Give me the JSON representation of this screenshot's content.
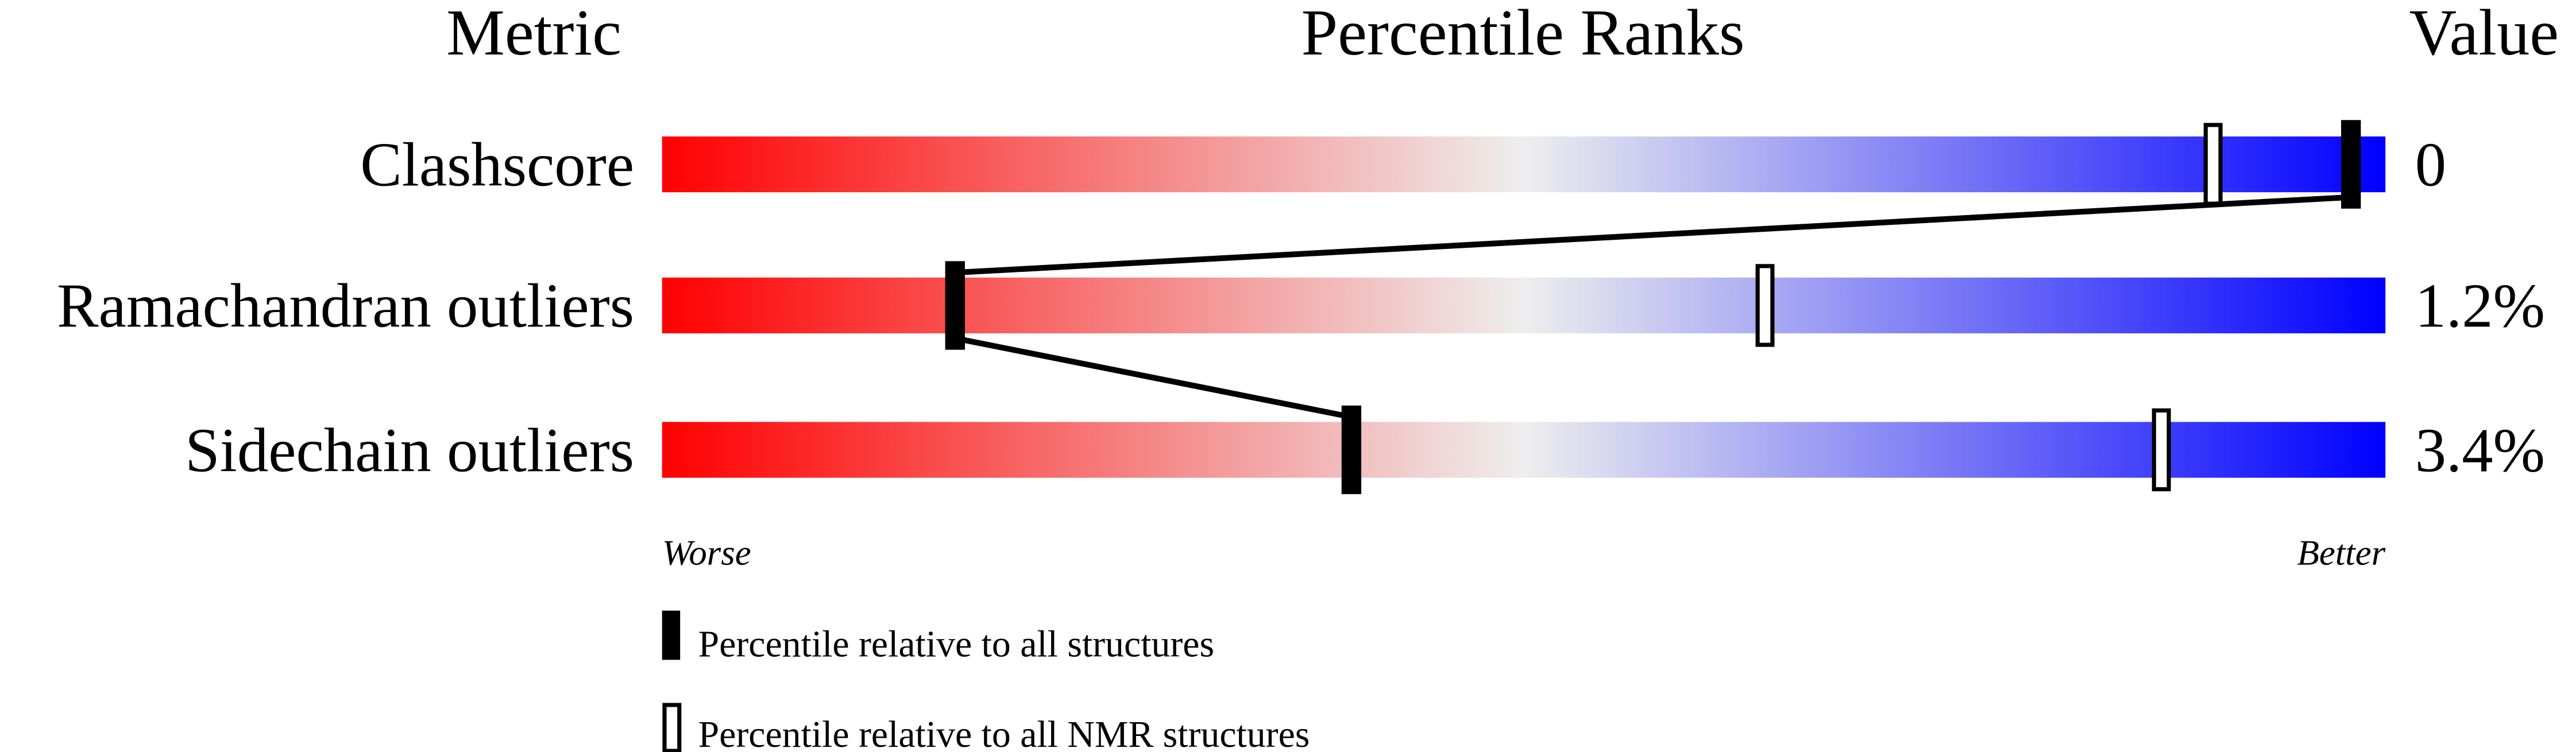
{
  "chart_data": {
    "type": "percentile-slider",
    "headers": {
      "metric": "Metric",
      "ranks": "Percentile Ranks",
      "value": "Value"
    },
    "xlim": [
      0,
      100
    ],
    "axis_labels": {
      "left": "Worse",
      "right": "Better"
    },
    "colors": {
      "worse": "#ff0000",
      "middle": "#eeeeee",
      "better": "#0000ff",
      "marker": "#000000"
    },
    "metrics": [
      {
        "name": "Clashscore",
        "value": "0",
        "percentile_all": 98,
        "percentile_nmr": 90
      },
      {
        "name": "Ramachandran outliers",
        "value": "1.2%",
        "percentile_all": 17,
        "percentile_nmr": 64
      },
      {
        "name": "Sidechain outliers",
        "value": "3.4%",
        "percentile_all": 40,
        "percentile_nmr": 87
      }
    ],
    "legend": [
      {
        "marker": "filled",
        "label": "Percentile relative to all structures"
      },
      {
        "marker": "open",
        "label": "Percentile relative to all NMR structures"
      }
    ]
  }
}
